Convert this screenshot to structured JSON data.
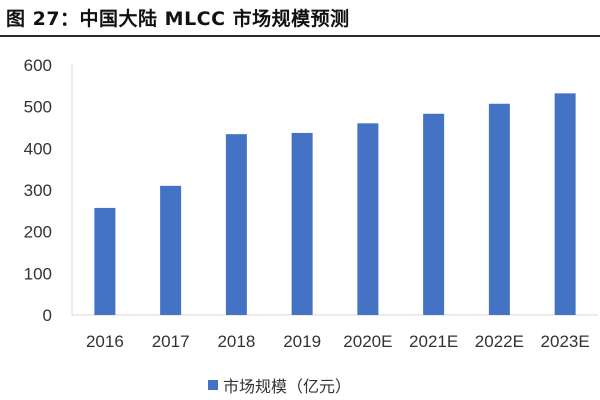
{
  "figure": {
    "title": "图 27：中国大陆 MLCC 市场规模预测"
  },
  "chart_data": {
    "type": "bar",
    "title": "",
    "xlabel": "",
    "ylabel": "",
    "categories": [
      "2016",
      "2017",
      "2018",
      "2019",
      "2020E",
      "2021E",
      "2022E",
      "2023E"
    ],
    "series": [
      {
        "name": "市场规模（亿元）",
        "values": [
          257,
          310,
          434,
          437,
          460,
          483,
          507,
          532
        ]
      }
    ],
    "ylim": [
      0,
      600
    ],
    "yticks": [
      0,
      100,
      200,
      300,
      400,
      500,
      600
    ],
    "grid": false,
    "legend_position": "bottom",
    "bar_color": "#4472C4"
  }
}
